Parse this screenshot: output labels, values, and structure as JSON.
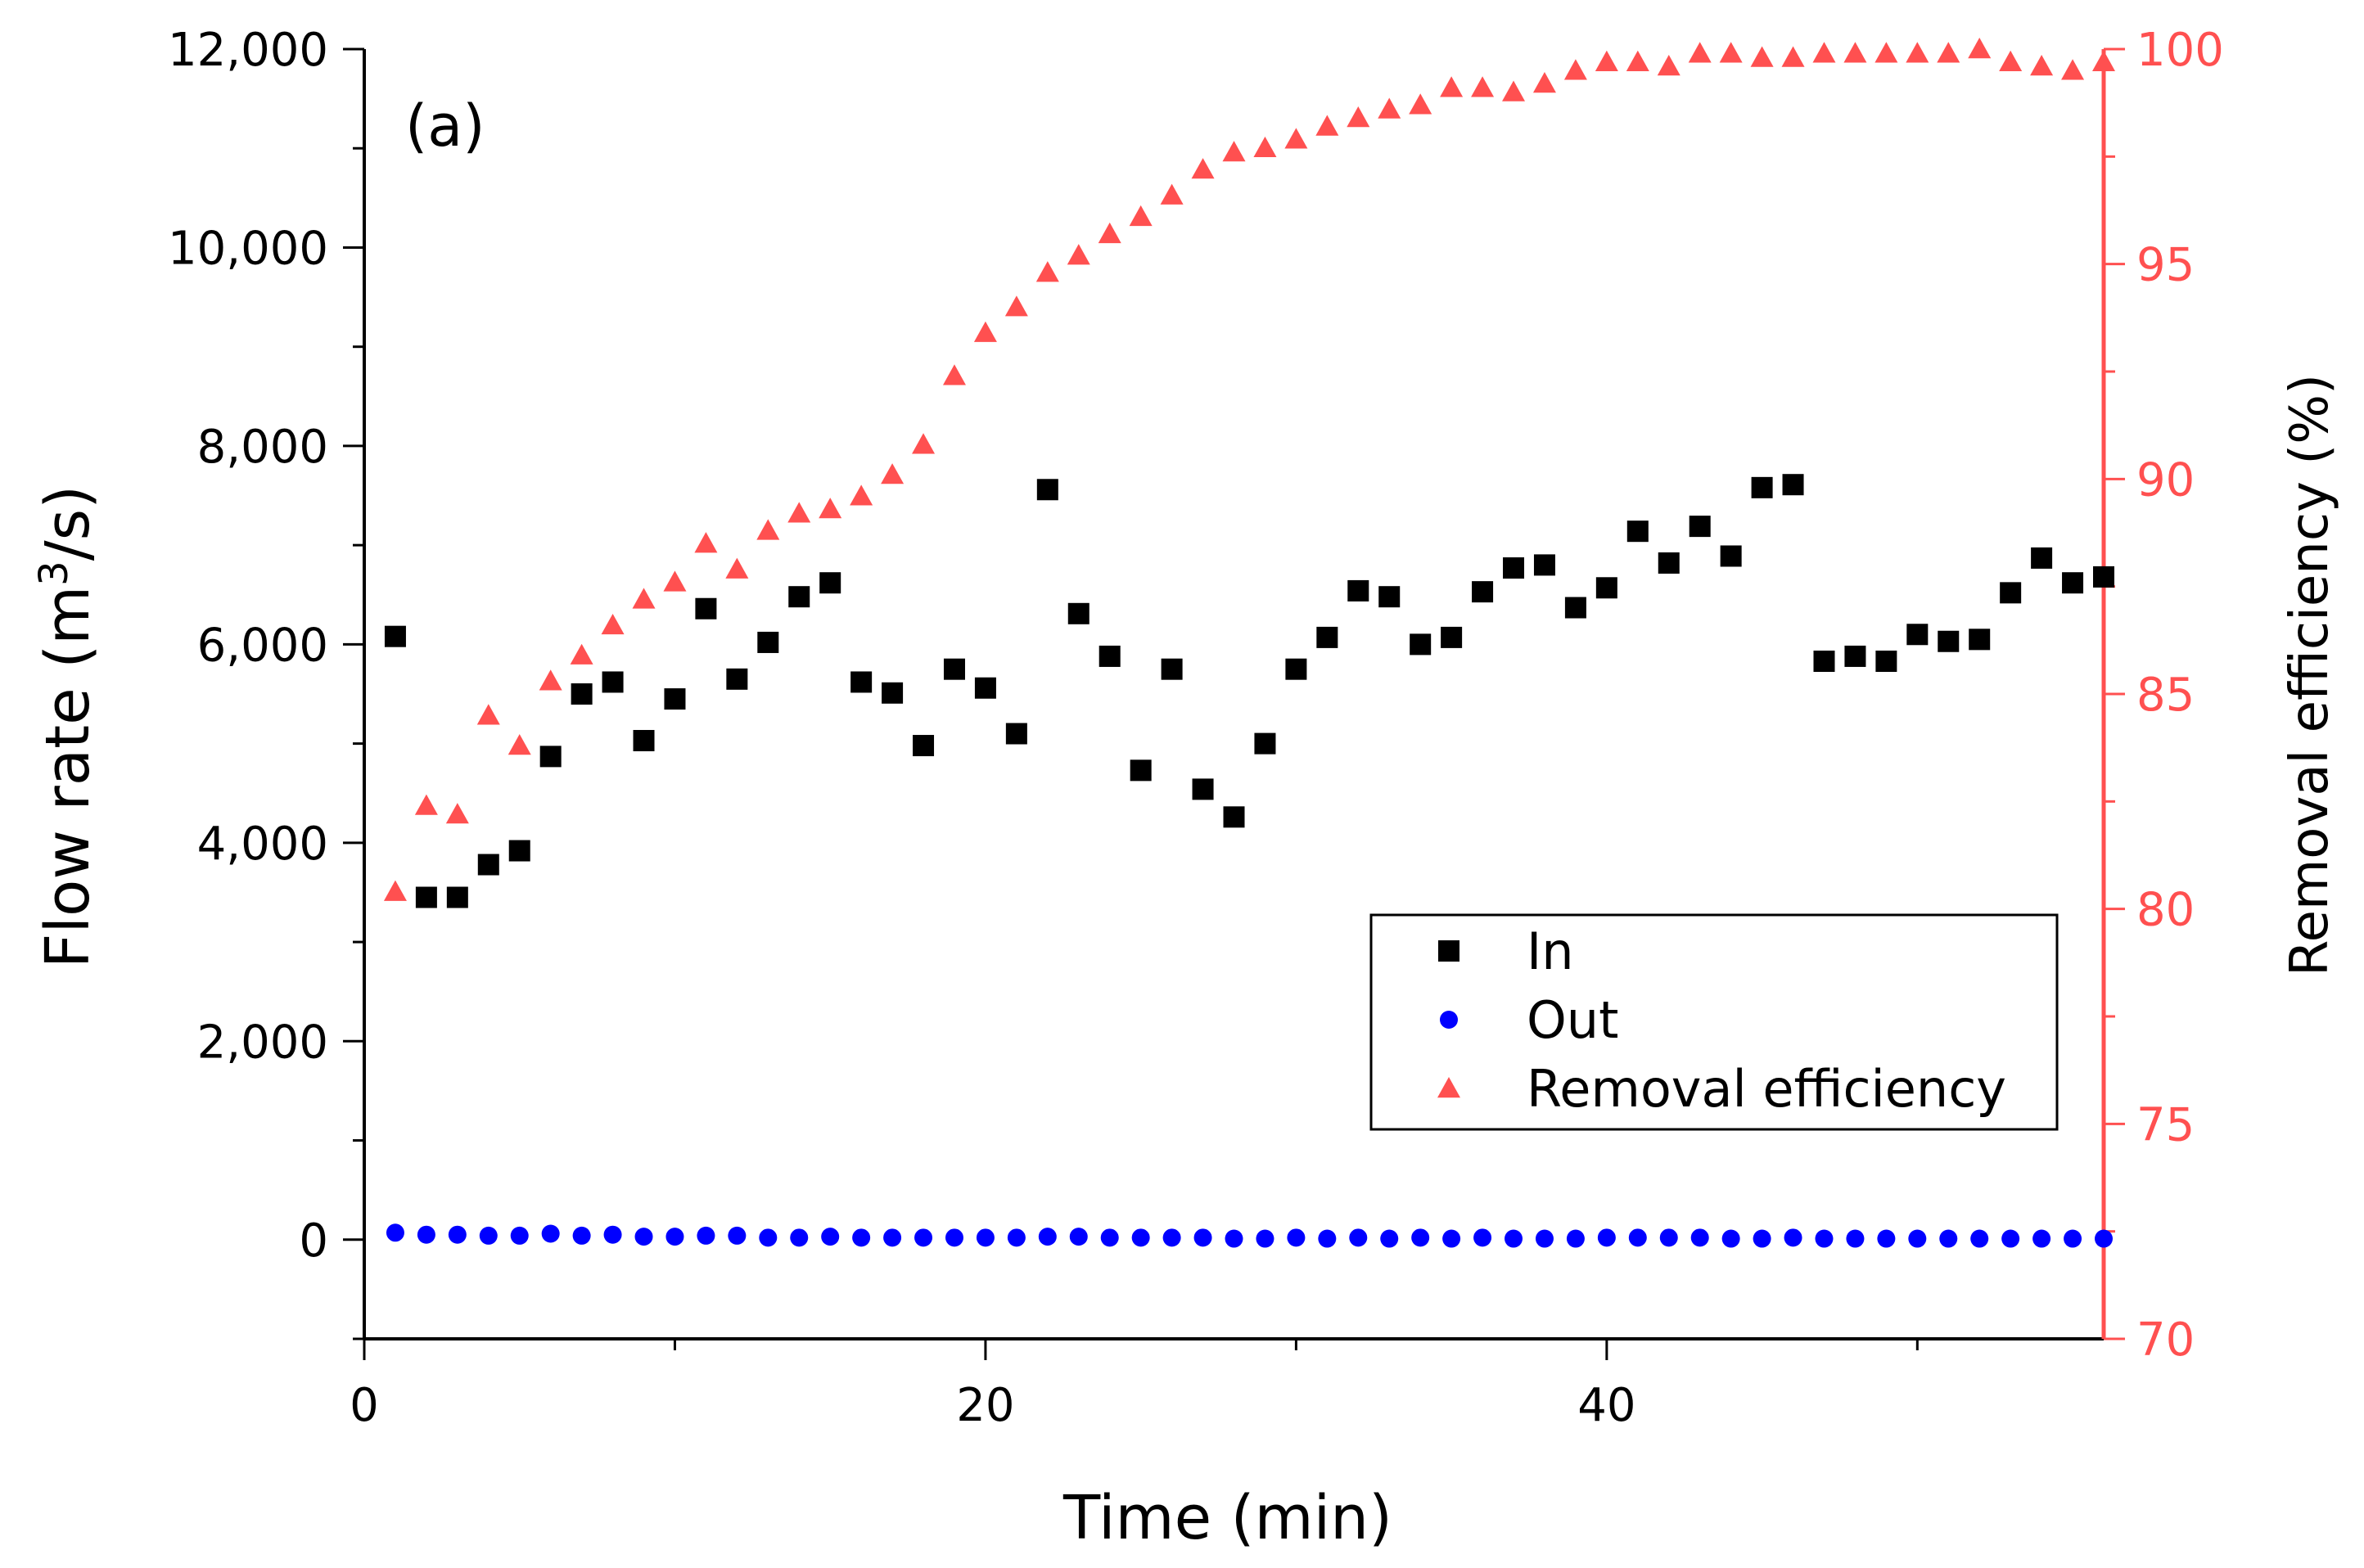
{
  "chart_data": {
    "type": "scatter",
    "panel_label": "(a)",
    "xlabel": "Time (min)",
    "ylabel_left": {
      "prefix": "Flow rate (m",
      "sup": "3",
      "suffix": "/s)"
    },
    "ylabel_right": "Removal efficiency (%)",
    "xlim": [
      0,
      56
    ],
    "ylim_left": [
      -1000,
      12000
    ],
    "ylim_right": [
      70,
      100
    ],
    "x_ticks": [
      0,
      20,
      40
    ],
    "x_tick_labels": [
      "0",
      "20",
      "40"
    ],
    "y_left_ticks": [
      0,
      2000,
      4000,
      6000,
      8000,
      10000,
      12000
    ],
    "y_left_tick_labels": [
      "0",
      "2,000",
      "4,000",
      "6,000",
      "8,000",
      "10,000",
      "12,000"
    ],
    "y_right_ticks": [
      70,
      75,
      80,
      85,
      90,
      95,
      100
    ],
    "y_right_tick_labels": [
      "70",
      "75",
      "80",
      "85",
      "90",
      "95",
      "100"
    ],
    "legend_position": "lower-right",
    "series": [
      {
        "name": "In",
        "marker": "square",
        "color": "#000000",
        "axis": "left",
        "x": [
          1,
          2,
          3,
          4,
          5,
          6,
          7,
          8,
          9,
          10,
          11,
          12,
          13,
          14,
          15,
          16,
          17,
          18,
          19,
          20,
          21,
          22,
          23,
          24,
          25,
          26,
          27,
          28,
          29,
          30,
          31,
          32,
          33,
          34,
          35,
          36,
          37,
          38,
          39,
          40,
          41,
          42,
          43,
          44,
          45,
          46,
          47,
          48,
          49,
          50,
          51,
          52,
          53,
          54,
          55,
          56
        ],
        "y": [
          6080,
          3450,
          3450,
          3780,
          3920,
          4870,
          5500,
          5620,
          5030,
          5450,
          6360,
          5650,
          6020,
          6480,
          6620,
          5620,
          5510,
          4980,
          5750,
          5560,
          5100,
          7560,
          6310,
          5880,
          4730,
          5750,
          4540,
          4260,
          5000,
          5750,
          6070,
          6540,
          6480,
          6000,
          6070,
          6530,
          6770,
          6800,
          6370,
          6570,
          7140,
          6820,
          7190,
          6890,
          7580,
          7610,
          5830,
          5880,
          5830,
          6100,
          6030,
          6050,
          6520,
          6870,
          6620,
          6680
        ]
      },
      {
        "name": "Out",
        "marker": "circle",
        "color": "#0000ff",
        "axis": "left",
        "x": [
          1,
          2,
          3,
          4,
          5,
          6,
          7,
          8,
          9,
          10,
          11,
          12,
          13,
          14,
          15,
          16,
          17,
          18,
          19,
          20,
          21,
          22,
          23,
          24,
          25,
          26,
          27,
          28,
          29,
          30,
          31,
          32,
          33,
          34,
          35,
          36,
          37,
          38,
          39,
          40,
          41,
          42,
          43,
          44,
          45,
          46,
          47,
          48,
          49,
          50,
          51,
          52,
          53,
          54,
          55,
          56
        ],
        "y": [
          70,
          50,
          50,
          40,
          40,
          60,
          40,
          50,
          30,
          30,
          40,
          40,
          20,
          20,
          30,
          20,
          20,
          20,
          20,
          20,
          20,
          30,
          30,
          20,
          20,
          20,
          20,
          10,
          10,
          20,
          10,
          20,
          10,
          20,
          10,
          20,
          10,
          10,
          10,
          20,
          20,
          20,
          20,
          10,
          10,
          20,
          10,
          10,
          10,
          10,
          10,
          10,
          10,
          10,
          10,
          10
        ]
      },
      {
        "name": "Removal efficiency",
        "marker": "triangle",
        "color": "#ff3333",
        "axis": "right",
        "x": [
          1,
          2,
          3,
          4,
          5,
          6,
          7,
          8,
          9,
          10,
          11,
          12,
          13,
          14,
          15,
          16,
          17,
          18,
          19,
          20,
          21,
          22,
          23,
          24,
          25,
          26,
          27,
          28,
          29,
          30,
          31,
          32,
          33,
          34,
          35,
          36,
          37,
          38,
          39,
          40,
          41,
          42,
          43,
          44,
          45,
          46,
          47,
          48,
          49,
          50,
          51,
          52,
          53,
          54,
          55,
          56
        ],
        "y": [
          80.4,
          82.4,
          82.2,
          84.5,
          83.8,
          85.3,
          85.9,
          86.6,
          87.2,
          87.6,
          88.5,
          87.9,
          88.8,
          89.2,
          89.3,
          89.6,
          90.1,
          90.8,
          92.4,
          93.4,
          94.0,
          94.8,
          95.2,
          95.7,
          96.1,
          96.6,
          97.2,
          97.6,
          97.7,
          97.9,
          98.2,
          98.4,
          98.6,
          98.7,
          99.1,
          99.1,
          99.0,
          99.2,
          99.5,
          99.7,
          99.7,
          99.6,
          99.9,
          99.9,
          99.8,
          99.8,
          99.9,
          99.9,
          99.9,
          99.9,
          99.9,
          100.0,
          99.7,
          99.6,
          99.5,
          99.7
        ]
      }
    ]
  }
}
